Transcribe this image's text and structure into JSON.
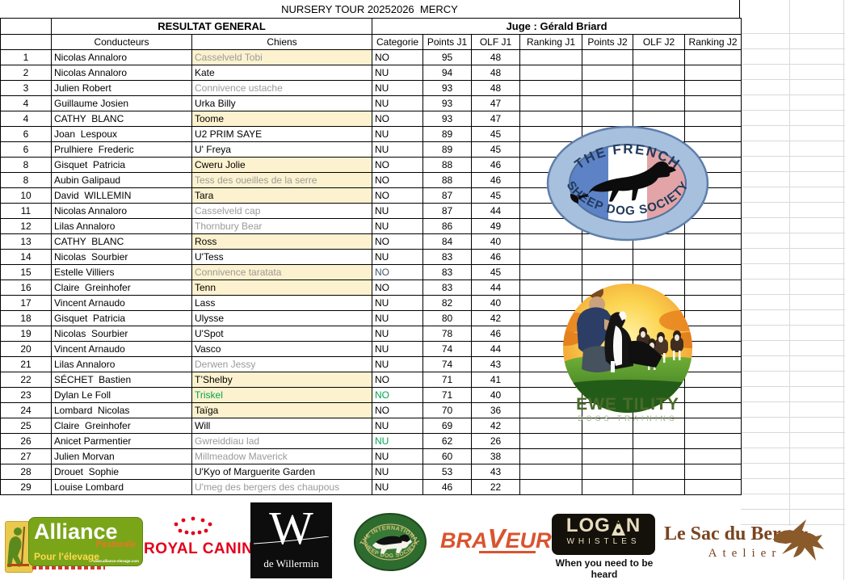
{
  "title": "NURSERY TOUR 20252026  MERCY",
  "colors": {
    "highlight_cream": "#fdf2cf",
    "muted_gray_text": "#9a9a9a",
    "green_text": "#00a550",
    "navy_text": "#44546a",
    "grid_faint": "#d9d9d9"
  },
  "table": {
    "group_headers": {
      "left": "RESULTAT GENERAL",
      "right": "Juge : Gérald Briard"
    },
    "columns": [
      "",
      "Conducteurs",
      "Chiens",
      "Categorie",
      "Points J1",
      "OLF J1",
      "Ranking J1",
      "Points J2",
      "OLF J2",
      "Ranking J2"
    ],
    "rows": [
      {
        "rank": "1",
        "conducteur": "Nicolas Annaloro",
        "chien": "Casselveld Tobi",
        "chien_color": "gray",
        "chien_bg": true,
        "categorie": "NO",
        "cat_color": "black",
        "points_j1": "95",
        "olf_j1": "48",
        "ranking_j1": "",
        "points_j2": "",
        "olf_j2": "",
        "ranking_j2": ""
      },
      {
        "rank": "2",
        "conducteur": "Nicolas Annaloro",
        "chien": "Kate",
        "chien_color": "black",
        "chien_bg": false,
        "categorie": "NU",
        "cat_color": "black",
        "points_j1": "94",
        "olf_j1": "48",
        "ranking_j1": "",
        "points_j2": "",
        "olf_j2": "",
        "ranking_j2": ""
      },
      {
        "rank": "3",
        "conducteur": "Julien Robert",
        "chien": "Connivence ustache",
        "chien_color": "gray",
        "chien_bg": false,
        "categorie": "NU",
        "cat_color": "black",
        "points_j1": "93",
        "olf_j1": "48",
        "ranking_j1": "",
        "points_j2": "",
        "olf_j2": "",
        "ranking_j2": ""
      },
      {
        "rank": "4",
        "conducteur": "Guillaume Josien",
        "chien": "Urka Billy",
        "chien_color": "black",
        "chien_bg": false,
        "categorie": "NU",
        "cat_color": "black",
        "points_j1": "93",
        "olf_j1": "47",
        "ranking_j1": "",
        "points_j2": "",
        "olf_j2": "",
        "ranking_j2": ""
      },
      {
        "rank": "4",
        "conducteur": "CATHY  BLANC",
        "chien": "Toome",
        "chien_color": "black",
        "chien_bg": true,
        "categorie": "NO",
        "cat_color": "black",
        "points_j1": "93",
        "olf_j1": "47",
        "ranking_j1": "",
        "points_j2": "",
        "olf_j2": "",
        "ranking_j2": ""
      },
      {
        "rank": "6",
        "conducteur": "Joan  Lespoux",
        "chien": "U2 PRIM SAYE",
        "chien_color": "black",
        "chien_bg": false,
        "categorie": "NU",
        "cat_color": "black",
        "points_j1": "89",
        "olf_j1": "45",
        "ranking_j1": "",
        "points_j2": "",
        "olf_j2": "",
        "ranking_j2": ""
      },
      {
        "rank": "6",
        "conducteur": "Prulhiere  Frederic",
        "chien": "U' Freya",
        "chien_color": "black",
        "chien_bg": false,
        "categorie": "NU",
        "cat_color": "black",
        "points_j1": "89",
        "olf_j1": "45",
        "ranking_j1": "",
        "points_j2": "",
        "olf_j2": "",
        "ranking_j2": ""
      },
      {
        "rank": "8",
        "conducteur": "Gisquet  Patricia",
        "chien": "Cweru Jolie",
        "chien_color": "black",
        "chien_bg": true,
        "categorie": "NO",
        "cat_color": "black",
        "points_j1": "88",
        "olf_j1": "46",
        "ranking_j1": "",
        "points_j2": "",
        "olf_j2": "",
        "ranking_j2": ""
      },
      {
        "rank": "8",
        "conducteur": "Aubin Galipaud",
        "chien": "Tess des oueilles de la serre",
        "chien_color": "gray",
        "chien_bg": true,
        "categorie": "NO",
        "cat_color": "black",
        "points_j1": "88",
        "olf_j1": "46",
        "ranking_j1": "",
        "points_j2": "",
        "olf_j2": "",
        "ranking_j2": ""
      },
      {
        "rank": "10",
        "conducteur": "David  WILLEMIN",
        "chien": "Tara",
        "chien_color": "black",
        "chien_bg": true,
        "categorie": "NO",
        "cat_color": "black",
        "points_j1": "87",
        "olf_j1": "45",
        "ranking_j1": "",
        "points_j2": "",
        "olf_j2": "",
        "ranking_j2": ""
      },
      {
        "rank": "11",
        "conducteur": "Nicolas Annaloro",
        "chien": "Casselveld cap",
        "chien_color": "gray",
        "chien_bg": false,
        "categorie": "NU",
        "cat_color": "black",
        "points_j1": "87",
        "olf_j1": "44",
        "ranking_j1": "",
        "points_j2": "",
        "olf_j2": "",
        "ranking_j2": ""
      },
      {
        "rank": "12",
        "conducteur": "Lilas Annaloro",
        "chien": "Thornbury Bear",
        "chien_color": "gray",
        "chien_bg": false,
        "categorie": "NU",
        "cat_color": "black",
        "points_j1": "86",
        "olf_j1": "49",
        "ranking_j1": "",
        "points_j2": "",
        "olf_j2": "",
        "ranking_j2": ""
      },
      {
        "rank": "13",
        "conducteur": "CATHY  BLANC",
        "chien": "Ross",
        "chien_color": "black",
        "chien_bg": true,
        "categorie": "NO",
        "cat_color": "black",
        "points_j1": "84",
        "olf_j1": "40",
        "ranking_j1": "",
        "points_j2": "",
        "olf_j2": "",
        "ranking_j2": ""
      },
      {
        "rank": "14",
        "conducteur": "Nicolas  Sourbier",
        "chien": "U'Tess",
        "chien_color": "black",
        "chien_bg": false,
        "categorie": "NU",
        "cat_color": "black",
        "points_j1": "83",
        "olf_j1": "46",
        "ranking_j1": "",
        "points_j2": "",
        "olf_j2": "",
        "ranking_j2": ""
      },
      {
        "rank": "15",
        "conducteur": "Estelle Villiers",
        "chien": "Connivence taratata",
        "chien_color": "gray",
        "chien_bg": true,
        "categorie": "NO",
        "cat_color": "navy",
        "points_j1": "83",
        "olf_j1": "45",
        "ranking_j1": "",
        "points_j2": "",
        "olf_j2": "",
        "ranking_j2": ""
      },
      {
        "rank": "16",
        "conducteur": "Claire  Greinhofer",
        "chien": "Tenn",
        "chien_color": "black",
        "chien_bg": true,
        "categorie": "NO",
        "cat_color": "black",
        "points_j1": "83",
        "olf_j1": "44",
        "ranking_j1": "",
        "points_j2": "",
        "olf_j2": "",
        "ranking_j2": ""
      },
      {
        "rank": "17",
        "conducteur": "Vincent Arnaudo",
        "chien": "Lass",
        "chien_color": "black",
        "chien_bg": false,
        "categorie": "NU",
        "cat_color": "black",
        "points_j1": "82",
        "olf_j1": "40",
        "ranking_j1": "",
        "points_j2": "",
        "olf_j2": "",
        "ranking_j2": ""
      },
      {
        "rank": "18",
        "conducteur": "Gisquet  Patricia",
        "chien": "Ulysse",
        "chien_color": "black",
        "chien_bg": false,
        "categorie": "NU",
        "cat_color": "black",
        "points_j1": "80",
        "olf_j1": "42",
        "ranking_j1": "",
        "points_j2": "",
        "olf_j2": "",
        "ranking_j2": ""
      },
      {
        "rank": "19",
        "conducteur": "Nicolas  Sourbier",
        "chien": "U'Spot",
        "chien_color": "black",
        "chien_bg": false,
        "categorie": "NU",
        "cat_color": "black",
        "points_j1": "78",
        "olf_j1": "46",
        "ranking_j1": "",
        "points_j2": "",
        "olf_j2": "",
        "ranking_j2": ""
      },
      {
        "rank": "20",
        "conducteur": "Vincent Arnaudo",
        "chien": "Vasco",
        "chien_color": "black",
        "chien_bg": false,
        "categorie": "NU",
        "cat_color": "black",
        "points_j1": "74",
        "olf_j1": "44",
        "ranking_j1": "",
        "points_j2": "",
        "olf_j2": "",
        "ranking_j2": ""
      },
      {
        "rank": "21",
        "conducteur": "Lilas Annaloro",
        "chien": "Derwen Jessy",
        "chien_color": "gray",
        "chien_bg": false,
        "categorie": "NU",
        "cat_color": "black",
        "points_j1": "74",
        "olf_j1": "43",
        "ranking_j1": "",
        "points_j2": "",
        "olf_j2": "",
        "ranking_j2": ""
      },
      {
        "rank": "22",
        "conducteur": "SÉCHET  Bastien",
        "chien": "T’Shelby",
        "chien_color": "black",
        "chien_bg": true,
        "categorie": "NO",
        "cat_color": "black",
        "points_j1": "71",
        "olf_j1": "41",
        "ranking_j1": "",
        "points_j2": "",
        "olf_j2": "",
        "ranking_j2": ""
      },
      {
        "rank": "23",
        "conducteur": "Dylan Le Foll",
        "chien": "Triskel",
        "chien_color": "green",
        "chien_bg": true,
        "categorie": "NO",
        "cat_color": "green",
        "points_j1": "71",
        "olf_j1": "40",
        "ranking_j1": "",
        "points_j2": "",
        "olf_j2": "",
        "ranking_j2": ""
      },
      {
        "rank": "24",
        "conducteur": "Lombard  Nicolas",
        "chien": "Taïga",
        "chien_color": "black",
        "chien_bg": true,
        "categorie": "NO",
        "cat_color": "black",
        "points_j1": "70",
        "olf_j1": "36",
        "ranking_j1": "",
        "points_j2": "",
        "olf_j2": "",
        "ranking_j2": ""
      },
      {
        "rank": "25",
        "conducteur": "Claire  Greinhofer",
        "chien": "Will",
        "chien_color": "black",
        "chien_bg": false,
        "categorie": "NU",
        "cat_color": "black",
        "points_j1": "69",
        "olf_j1": "42",
        "ranking_j1": "",
        "points_j2": "",
        "olf_j2": "",
        "ranking_j2": ""
      },
      {
        "rank": "26",
        "conducteur": "Anicet Parmentier",
        "chien": "Gwreiddiau lad",
        "chien_color": "gray",
        "chien_bg": false,
        "categorie": "NU",
        "cat_color": "green",
        "points_j1": "62",
        "olf_j1": "26",
        "ranking_j1": "",
        "points_j2": "",
        "olf_j2": "",
        "ranking_j2": ""
      },
      {
        "rank": "27",
        "conducteur": "Julien Morvan",
        "chien": "Millmeadow Maverick",
        "chien_color": "gray",
        "chien_bg": false,
        "categorie": "NU",
        "cat_color": "black",
        "points_j1": "60",
        "olf_j1": "38",
        "ranking_j1": "",
        "points_j2": "",
        "olf_j2": "",
        "ranking_j2": ""
      },
      {
        "rank": "28",
        "conducteur": "Drouet  Sophie",
        "chien": "U'Kyo of Marguerite Garden",
        "chien_color": "black",
        "chien_bg": false,
        "categorie": "NU",
        "cat_color": "black",
        "points_j1": "53",
        "olf_j1": "43",
        "ranking_j1": "",
        "points_j2": "",
        "olf_j2": "",
        "ranking_j2": ""
      },
      {
        "rank": "29",
        "conducteur": "Louise Lombard",
        "chien": "U'meg des bergers des chaupous",
        "chien_color": "gray",
        "chien_bg": false,
        "categorie": "NU",
        "cat_color": "black",
        "points_j1": "46",
        "olf_j1": "22",
        "ranking_j1": "",
        "points_j2": "",
        "olf_j2": "",
        "ranking_j2": ""
      }
    ]
  },
  "logos": {
    "french_sds": {
      "top_text": "THE FRENCH",
      "bottom_text": "SHEEP DOG SOCIETY"
    },
    "ewe_tility": {
      "name": "EWE TILITY",
      "subtitle": "DOGS TRAINING"
    },
    "alliance": {
      "name": "Alliance",
      "sub": "Pastorale",
      "tagline": "Pour l'élevage",
      "url": "www.alliance-elevage.com"
    },
    "royal_canin": {
      "name": "ROYAL CANIN",
      "reg": "®"
    },
    "willermin": {
      "letter": "W",
      "name": "de Willermin"
    },
    "isds": {
      "top_text": "THE INTERNATIONAL",
      "bottom_text": "SHEEP DOG SOCIETY"
    },
    "braveur": {
      "part1": "BRA",
      "part2": "V",
      "part3": "EUR",
      "reg": "®"
    },
    "logan": {
      "name_left": "LOG",
      "name_right": "N",
      "sub": "WHISTLES",
      "tagline": "When you need to be heard"
    },
    "sac_berger": {
      "name": "Le Sac du Berger",
      "sub": "Atelier"
    }
  }
}
